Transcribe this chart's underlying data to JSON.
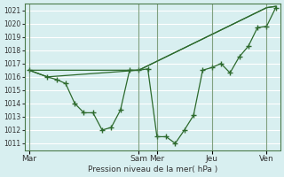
{
  "title": "",
  "xlabel": "Pression niveau de la mer( hPa )",
  "ylabel": "",
  "bg_color": "#d8eff0",
  "grid_color": "#ffffff",
  "line_color": "#2d6a2d",
  "ylim": [
    1010.5,
    1021.5
  ],
  "yticks": [
    1011,
    1012,
    1013,
    1014,
    1015,
    1016,
    1017,
    1018,
    1019,
    1020,
    1021
  ],
  "day_labels": [
    "Mar",
    "Sam",
    "Mer",
    "Jeu",
    "Ven"
  ],
  "day_positions": [
    0,
    12,
    14,
    20,
    26
  ],
  "series1_x": [
    0,
    2,
    3,
    4,
    5,
    6,
    7,
    8,
    9,
    10,
    11,
    12,
    13,
    14,
    15,
    16,
    17,
    18,
    19,
    20,
    21,
    22,
    23,
    24,
    25,
    26,
    27
  ],
  "series1_y": [
    1016.5,
    1016.0,
    1015.8,
    1015.5,
    1014.0,
    1013.3,
    1013.3,
    1012.0,
    1012.2,
    1013.5,
    1016.5,
    1016.5,
    1016.6,
    1011.5,
    1011.5,
    1011.0,
    1012.0,
    1013.1,
    1016.5,
    1016.7,
    1017.0,
    1016.3,
    1017.5,
    1018.3,
    1019.7,
    1019.8,
    1021.2
  ],
  "series2_x": [
    0,
    12,
    26,
    27
  ],
  "series2_y": [
    1016.5,
    1016.5,
    1021.2,
    1021.3
  ],
  "series3_x": [
    0,
    2,
    12,
    26,
    27
  ],
  "series3_y": [
    1016.5,
    1016.0,
    1016.5,
    1021.2,
    1021.3
  ]
}
